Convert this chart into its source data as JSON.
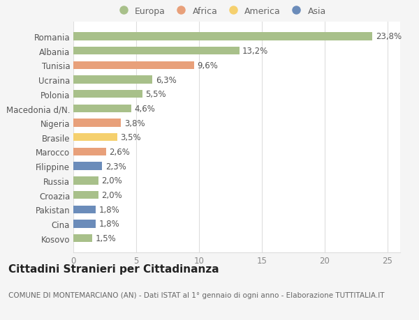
{
  "categories": [
    "Kosovo",
    "Cina",
    "Pakistan",
    "Croazia",
    "Russia",
    "Filippine",
    "Marocco",
    "Brasile",
    "Nigeria",
    "Macedonia d/N.",
    "Polonia",
    "Ucraina",
    "Tunisia",
    "Albania",
    "Romania"
  ],
  "values": [
    1.5,
    1.8,
    1.8,
    2.0,
    2.0,
    2.3,
    2.6,
    3.5,
    3.8,
    4.6,
    5.5,
    6.3,
    9.6,
    13.2,
    23.8
  ],
  "labels": [
    "1,5%",
    "1,8%",
    "1,8%",
    "2,0%",
    "2,0%",
    "2,3%",
    "2,6%",
    "3,5%",
    "3,8%",
    "4,6%",
    "5,5%",
    "6,3%",
    "9,6%",
    "13,2%",
    "23,8%"
  ],
  "continents": [
    "Europa",
    "Asia",
    "Asia",
    "Europa",
    "Europa",
    "Asia",
    "Africa",
    "America",
    "Africa",
    "Europa",
    "Europa",
    "Europa",
    "Africa",
    "Europa",
    "Europa"
  ],
  "continent_colors": {
    "Europa": "#a8c08a",
    "Africa": "#e8a07a",
    "America": "#f5d06e",
    "Asia": "#6b8cba"
  },
  "legend_order": [
    "Europa",
    "Africa",
    "America",
    "Asia"
  ],
  "legend_colors": [
    "#a8c08a",
    "#e8a07a",
    "#f5d06e",
    "#6b8cba"
  ],
  "title": "Cittadini Stranieri per Cittadinanza",
  "subtitle": "COMUNE DI MONTEMARCIANO (AN) - Dati ISTAT al 1° gennaio di ogni anno - Elaborazione TUTTITALIA.IT",
  "xlim": [
    0,
    26
  ],
  "xticks": [
    0,
    5,
    10,
    15,
    20,
    25
  ],
  "background_color": "#f5f5f5",
  "plot_bg_color": "#ffffff",
  "grid_color": "#dddddd",
  "label_fontsize": 8.5,
  "tick_fontsize": 8.5,
  "title_fontsize": 11,
  "subtitle_fontsize": 7.5,
  "bar_height": 0.55
}
